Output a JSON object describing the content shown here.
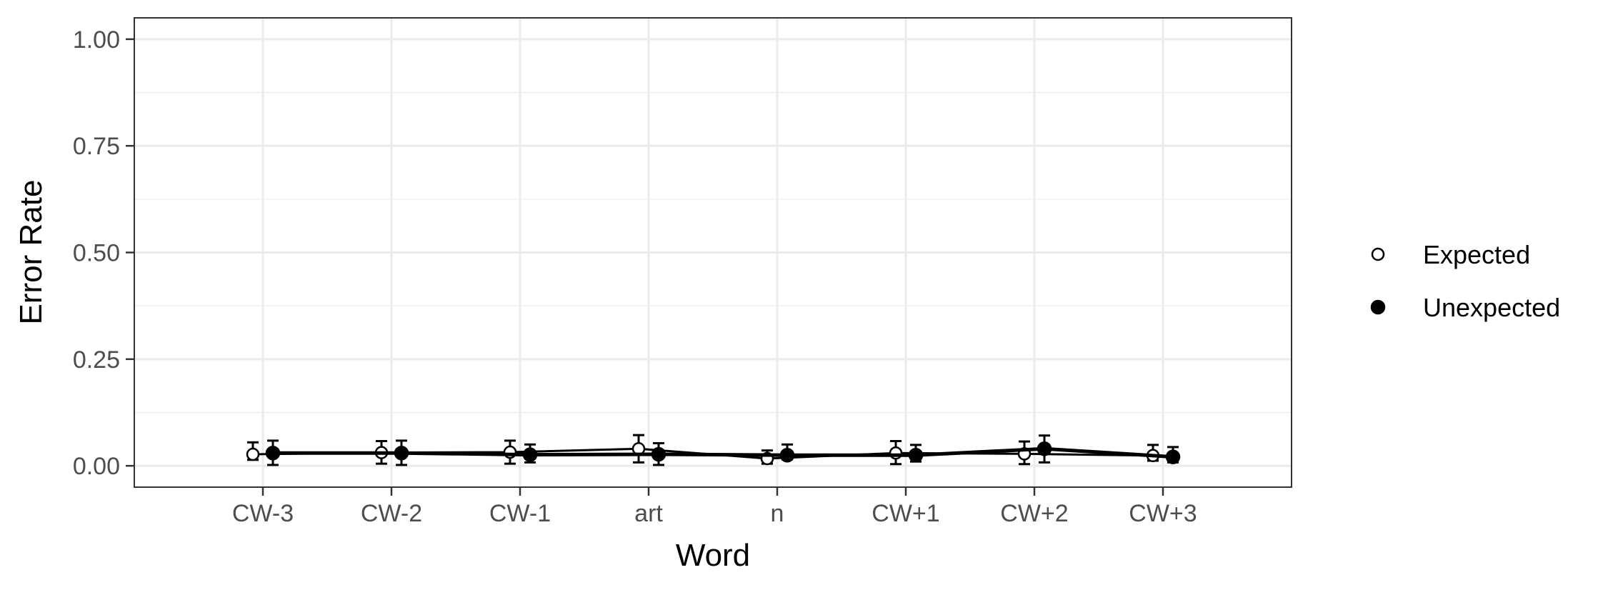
{
  "chart_data": {
    "type": "line",
    "title": "",
    "xlabel": "Word",
    "ylabel": "Error Rate",
    "categories": [
      "CW-3",
      "CW-2",
      "CW-1",
      "art",
      "n",
      "CW+1",
      "CW+2",
      "CW+3"
    ],
    "ylim": [
      0,
      1
    ],
    "yticks": [
      0,
      0.25,
      0.5,
      0.75,
      1.0
    ],
    "ytick_labels": [
      "0.00",
      "0.25",
      "0.50",
      "0.75",
      "1.00"
    ],
    "grid": true,
    "legend_position": "right",
    "series": [
      {
        "name": "Expected",
        "marker": "open-circle",
        "values": [
          0.027,
          0.031,
          0.032,
          0.04,
          0.017,
          0.03,
          0.028,
          0.024
        ],
        "error_low": [
          0.014,
          0.005,
          0.005,
          0.008,
          0.005,
          0.004,
          0.004,
          0.012
        ],
        "error_high": [
          0.055,
          0.058,
          0.059,
          0.072,
          0.036,
          0.058,
          0.057,
          0.049
        ]
      },
      {
        "name": "Unexpected",
        "marker": "filled-circle",
        "values": [
          0.03,
          0.03,
          0.026,
          0.027,
          0.025,
          0.025,
          0.04,
          0.021
        ],
        "error_low": [
          0.002,
          0.002,
          0.008,
          0.002,
          0.015,
          0.01,
          0.008,
          0.008
        ],
        "error_high": [
          0.059,
          0.059,
          0.05,
          0.053,
          0.05,
          0.049,
          0.071,
          0.044
        ]
      }
    ]
  }
}
